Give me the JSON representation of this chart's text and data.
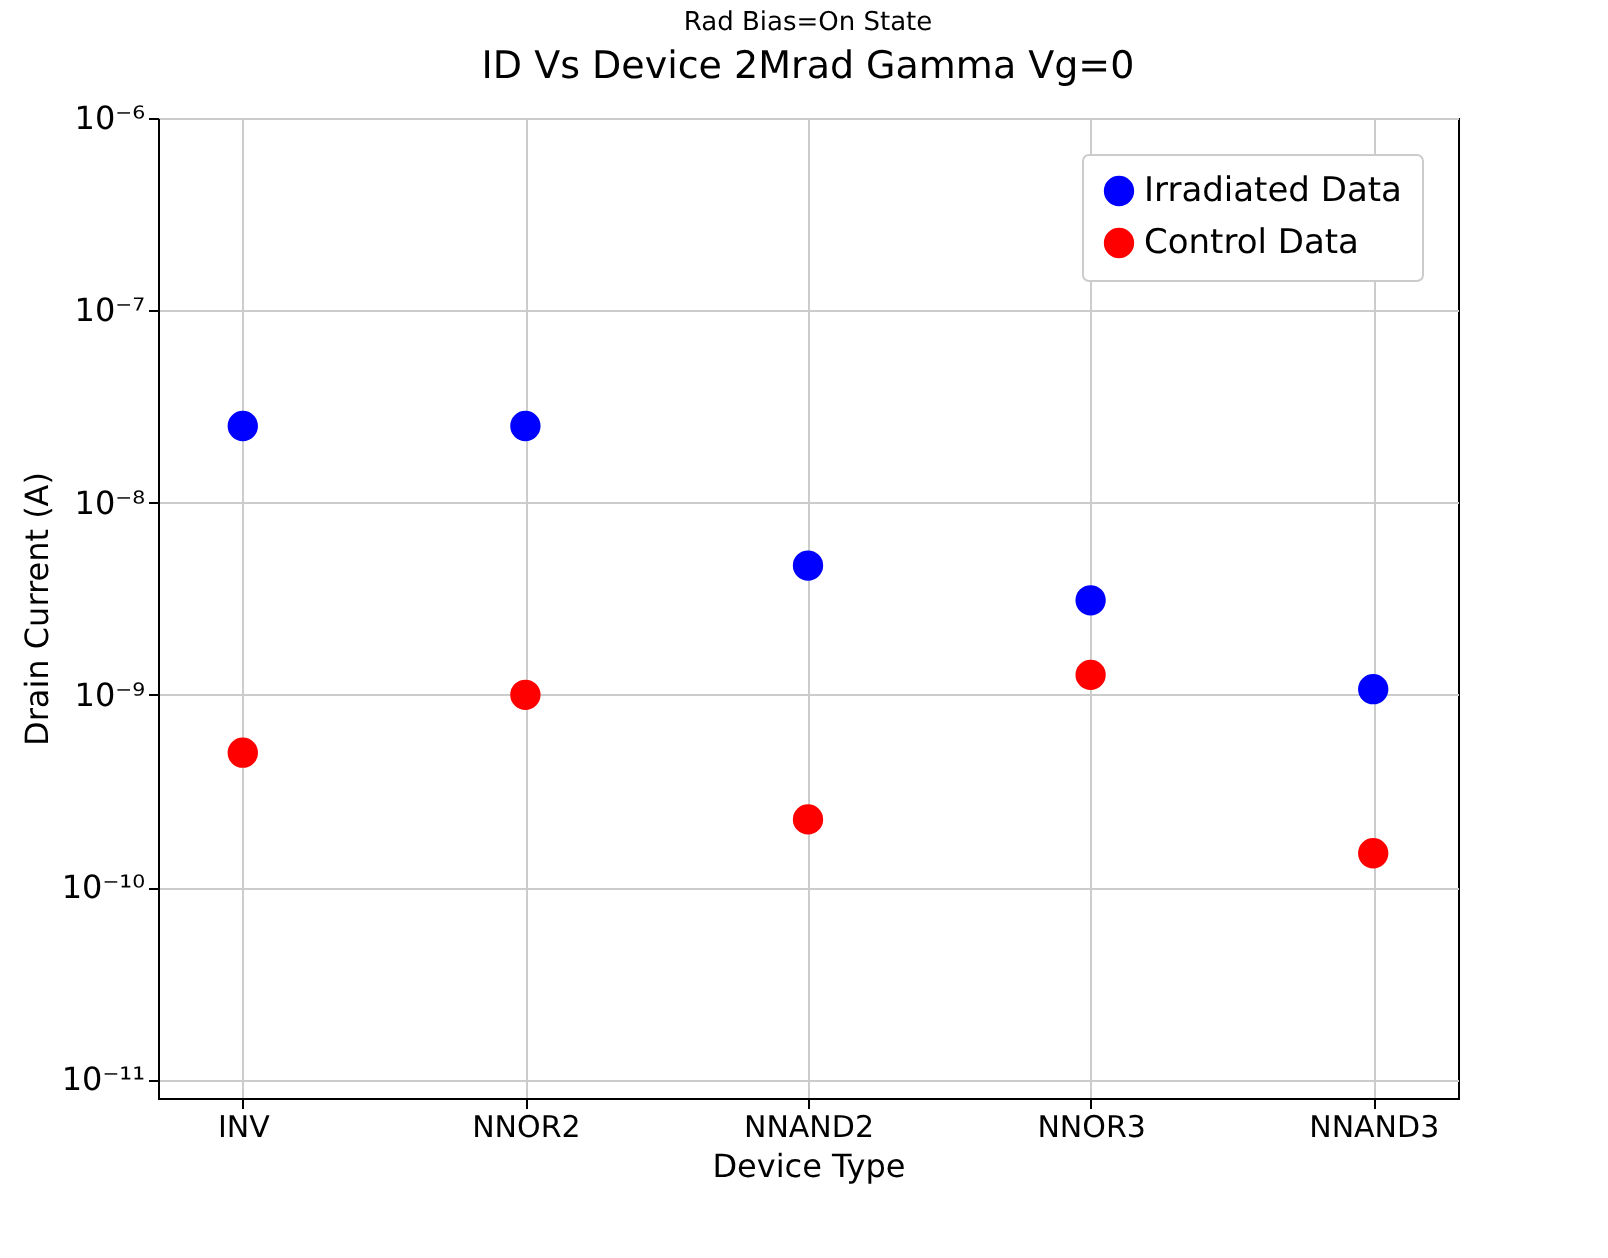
{
  "chart_data": {
    "type": "scatter",
    "title": "ID Vs Device 2Mrad Gamma    Vg=0",
    "subtitle": "Rad Bias=On State",
    "xlabel": "Device Type",
    "ylabel": "Drain Current (A)",
    "categories": [
      "INV",
      "NNOR2",
      "NNAND2",
      "NNOR3",
      "NNAND3"
    ],
    "series": [
      {
        "name": "Irradiated Data",
        "color": "#0000ff",
        "values": [
          2.5e-08,
          2.5e-08,
          4.7e-09,
          3.1e-09,
          1.07e-09
        ]
      },
      {
        "name": "Control Data",
        "color": "#ff0000",
        "values": [
          5e-10,
          1e-09,
          2.25e-10,
          1.27e-09,
          1.5e-10
        ]
      }
    ],
    "log": "y",
    "ylim": [
      8e-12,
      1e-06
    ],
    "yticks": [
      {
        "value": 1e-11,
        "label": "10⁻¹¹"
      },
      {
        "value": 1e-10,
        "label": "10⁻¹⁰"
      },
      {
        "value": 1e-09,
        "label": "10⁻⁹"
      },
      {
        "value": 1e-08,
        "label": "10⁻⁸"
      },
      {
        "value": 1e-07,
        "label": "10⁻⁷"
      },
      {
        "value": 1e-06,
        "label": "10⁻⁶"
      }
    ],
    "grid": true,
    "legend": "top right",
    "marker": "circle"
  }
}
